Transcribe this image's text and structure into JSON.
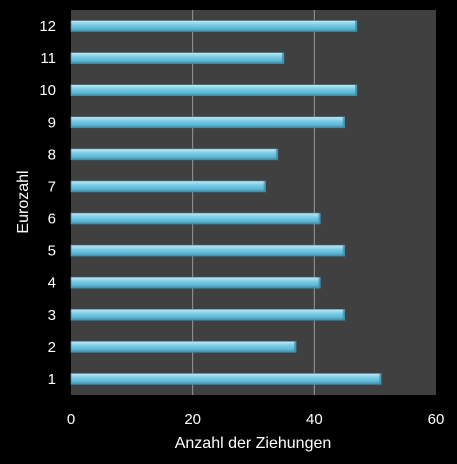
{
  "chart_data": {
    "type": "bar",
    "orientation": "horizontal",
    "title": "",
    "xlabel": "Anzahl der Ziehungen",
    "ylabel": "Eurozahl",
    "xlim": [
      0,
      60
    ],
    "xticks": [
      "0",
      "20",
      "40",
      "60"
    ],
    "grid": true,
    "legend": "none",
    "categories": [
      "1",
      "2",
      "3",
      "4",
      "5",
      "6",
      "7",
      "8",
      "9",
      "10",
      "11",
      "12"
    ],
    "values": [
      51,
      37,
      45,
      41,
      45,
      41,
      32,
      34,
      45,
      47,
      35,
      47
    ],
    "colors": {
      "background": "#000000",
      "plot_area": "#404040",
      "bar": "#6fc3df",
      "bar_highlight": "#b4e3f2",
      "bar_shadow": "#3f8aa3",
      "gridline": "#9a9a9a",
      "text": "#ffffff"
    }
  }
}
